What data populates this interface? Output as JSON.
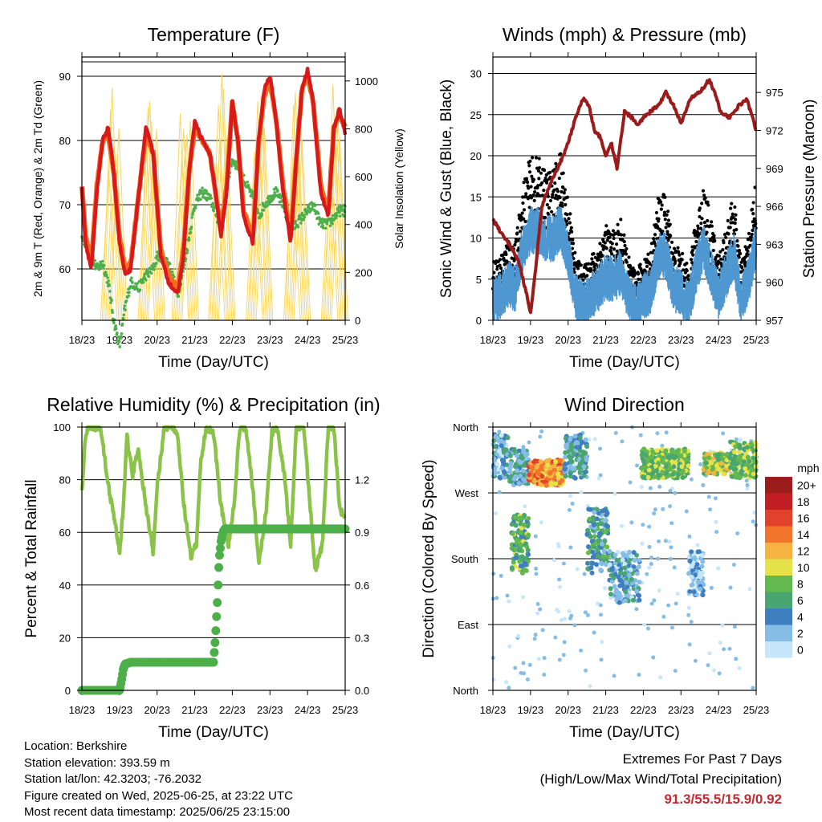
{
  "x_ticks": [
    "18/23",
    "19/23",
    "20/23",
    "21/23",
    "22/23",
    "23/23",
    "24/23",
    "25/23"
  ],
  "x_label": "Time (Day/UTC)",
  "colors": {
    "temp_2m": "#d7191c",
    "temp_9m": "#f46d1f",
    "dewpoint": "#4daf4a",
    "solar": "#f7d861",
    "gust": "#000000",
    "wind": "#4f97d1",
    "pressure": "#9b1b1b",
    "rh": "#8bc34a",
    "precip": "#4daf4a",
    "extremes": "#c8282d"
  },
  "chart_data": [
    {
      "id": "temperature",
      "type": "line",
      "title": "Temperature (F)",
      "xlabel": "Time (Day/UTC)",
      "ylabel": "2m & 9m T (Red, Orange) & 2m Td (Green)",
      "y2label": "Solar Insolation (Yellow)",
      "ylim": [
        52,
        93
      ],
      "y2lim": [
        0,
        1100
      ],
      "yticks": [
        60,
        70,
        80,
        90
      ],
      "y2ticks": [
        0,
        200,
        400,
        600,
        800,
        1000
      ],
      "x": [
        0,
        0.1,
        0.25,
        0.4,
        0.55,
        0.7,
        0.85,
        1.0,
        1.15,
        1.3,
        1.5,
        1.7,
        1.9,
        2.0,
        2.1,
        2.3,
        2.55,
        2.7,
        2.85,
        3.0,
        3.2,
        3.4,
        3.55,
        3.7,
        3.85,
        4.0,
        4.15,
        4.3,
        4.55,
        4.7,
        4.85,
        5.0,
        5.15,
        5.35,
        5.55,
        5.7,
        5.85,
        6.0,
        6.15,
        6.35,
        6.55,
        6.7,
        6.85,
        7.0
      ],
      "series": [
        {
          "name": "2m T",
          "values": [
            73,
            64,
            60,
            72,
            80,
            82,
            75,
            64,
            59,
            60,
            71,
            82,
            78,
            70,
            62,
            58,
            56,
            62,
            75,
            83,
            80,
            78,
            72,
            65,
            72,
            86,
            80,
            68,
            64,
            80,
            88,
            90,
            84,
            72,
            64,
            77,
            88,
            91,
            86,
            72,
            68,
            82,
            85,
            81
          ]
        },
        {
          "name": "9m T",
          "values": [
            73,
            65,
            61,
            73,
            80,
            81,
            75,
            65,
            60,
            61,
            71,
            81,
            78,
            70,
            63,
            59,
            57,
            63,
            75,
            82,
            80,
            78,
            72,
            66,
            73,
            86,
            80,
            69,
            65,
            80,
            87,
            89,
            84,
            73,
            65,
            77,
            88,
            90,
            86,
            73,
            69,
            82,
            84,
            82
          ]
        },
        {
          "name": "2m Td",
          "values": [
            65,
            64,
            62,
            60,
            61,
            58,
            52,
            48,
            54,
            58,
            57,
            59,
            60,
            62,
            62,
            61,
            56,
            60,
            65,
            70,
            72,
            71,
            69,
            66,
            73,
            77,
            76,
            74,
            71,
            68,
            70,
            71,
            72,
            70,
            66,
            67,
            68,
            69,
            70,
            67,
            67,
            68,
            69,
            69
          ]
        }
      ],
      "solar": {
        "peaks": [
          0.85,
          1.85,
          2.75,
          3.72,
          4.72,
          5.72,
          6.72
        ],
        "peak_values": [
          1050,
          1040,
          1060,
          1050,
          1000,
          1050,
          1050
        ]
      }
    },
    {
      "id": "winds",
      "type": "scatter",
      "title": "Winds (mph) & Pressure (mb)",
      "xlabel": "Time (Day/UTC)",
      "ylabel": "Sonic Wind & Gust (Blue, Black)",
      "y2label": "Station Pressure (Maroon)",
      "ylim": [
        0,
        32
      ],
      "y2lim": [
        957,
        977.8
      ],
      "yticks": [
        0,
        5,
        10,
        15,
        20,
        25,
        30
      ],
      "y2ticks": [
        957,
        960,
        963,
        966,
        969,
        972,
        975
      ],
      "pressure_x": [
        0,
        0.2,
        0.45,
        0.7,
        0.9,
        1.0,
        1.1,
        1.3,
        1.55,
        1.8,
        2.0,
        2.2,
        2.4,
        2.55,
        2.7,
        2.85,
        3.0,
        3.15,
        3.3,
        3.5,
        3.7,
        3.85,
        4.0,
        4.2,
        4.4,
        4.6,
        4.8,
        5.0,
        5.25,
        5.5,
        5.75,
        5.9,
        6.05,
        6.3,
        6.55,
        6.75,
        6.9,
        7.0
      ],
      "pressure": [
        965,
        964,
        963,
        961.5,
        959,
        957.5,
        960,
        966,
        968,
        969.5,
        971,
        973,
        974.5,
        974,
        972,
        971.5,
        970,
        971,
        969,
        973.5,
        973,
        972.5,
        973,
        973.5,
        974,
        975,
        974,
        972.5,
        974.5,
        975,
        976,
        975,
        973.5,
        973,
        974,
        974.5,
        973,
        972
      ],
      "wind_mean_x": [
        0,
        0.2,
        0.4,
        0.6,
        0.8,
        1.0,
        1.2,
        1.4,
        1.6,
        1.8,
        2.0,
        2.2,
        2.4,
        2.6,
        2.8,
        3.0,
        3.2,
        3.4,
        3.6,
        3.8,
        4.0,
        4.2,
        4.4,
        4.6,
        4.8,
        5.0,
        5.2,
        5.4,
        5.6,
        5.8,
        6.0,
        6.2,
        6.4,
        6.6,
        6.8,
        7.0
      ],
      "wind_mean": [
        2.5,
        3,
        4.5,
        4,
        9,
        11,
        11,
        10,
        10,
        11.5,
        8,
        3,
        2,
        3,
        4,
        5.5,
        5,
        6,
        3,
        1.5,
        3,
        3.5,
        8,
        8,
        4,
        3.5,
        2,
        6,
        9,
        6,
        3,
        5.5,
        8,
        2.5,
        5,
        9.5
      ],
      "gust_extra": 6
    },
    {
      "id": "humidity",
      "type": "line",
      "title": "Relative Humidity (%) & Precipitation (in)",
      "xlabel": "Time (Day/UTC)",
      "ylabel": "Percent & Total Rainfall",
      "ylim": [
        0,
        100
      ],
      "y2lim": [
        0,
        1.5
      ],
      "yticks": [
        0,
        20,
        40,
        60,
        80,
        100
      ],
      "y2ticks": [
        "0.0",
        "0.3",
        "0.6",
        "0.9",
        "1.2"
      ],
      "rh_x": [
        0,
        0.1,
        0.2,
        0.5,
        0.7,
        0.9,
        1.0,
        1.1,
        1.2,
        1.35,
        1.5,
        1.7,
        1.9,
        2.0,
        2.2,
        2.4,
        2.55,
        2.7,
        2.9,
        3.05,
        3.15,
        3.3,
        3.5,
        3.7,
        3.9,
        4.05,
        4.2,
        4.35,
        4.55,
        4.7,
        4.9,
        5.05,
        5.2,
        5.4,
        5.55,
        5.7,
        5.9,
        6.05,
        6.2,
        6.4,
        6.55,
        6.7,
        6.85,
        7.0
      ],
      "rh": [
        76,
        98,
        100,
        100,
        78,
        62,
        52,
        70,
        96,
        82,
        92,
        70,
        52,
        78,
        100,
        100,
        96,
        72,
        50,
        56,
        85,
        100,
        98,
        70,
        55,
        72,
        100,
        100,
        76,
        48,
        68,
        98,
        100,
        80,
        55,
        100,
        100,
        74,
        45,
        56,
        100,
        100,
        70,
        64
      ],
      "precip_x": [
        0,
        1.0,
        1.05,
        1.1,
        1.15,
        1.3,
        2.0,
        3.0,
        3.5,
        3.55,
        3.6,
        3.62,
        3.65,
        3.7,
        3.75,
        3.8,
        4.5,
        5.5,
        6.5,
        7.0
      ],
      "precip": [
        0.0,
        0.0,
        0.05,
        0.12,
        0.15,
        0.16,
        0.16,
        0.16,
        0.16,
        0.3,
        0.5,
        0.6,
        0.75,
        0.85,
        0.9,
        0.92,
        0.92,
        0.92,
        0.92,
        0.92
      ]
    },
    {
      "id": "direction",
      "type": "scatter",
      "title": "Wind Direction",
      "xlabel": "Time (Day/UTC)",
      "ylabel": "Direction (Colored By Speed)",
      "ytick_labels": [
        "North",
        "East",
        "South",
        "West",
        "North"
      ],
      "ylim": [
        0,
        360
      ],
      "legend_title": "mph",
      "legend_labels": [
        "0",
        "2",
        "4",
        "6",
        "8",
        "10",
        "12",
        "14",
        "16",
        "18",
        "20+"
      ],
      "legend_colors": [
        "#c6e6fb",
        "#85bde6",
        "#3f7fc0",
        "#4aa670",
        "#63b94e",
        "#e6e24a",
        "#f5b342",
        "#f2752b",
        "#e2422c",
        "#c21e24",
        "#9c1b1b"
      ],
      "clusters": [
        {
          "x0": 0.0,
          "x1": 0.45,
          "dir0": 290,
          "dir1": 350,
          "spd": 3
        },
        {
          "x0": 0.45,
          "x1": 0.95,
          "dir0": 280,
          "dir1": 330,
          "spd": 4
        },
        {
          "x0": 0.5,
          "x1": 0.95,
          "dir0": 160,
          "dir1": 240,
          "spd": 7
        },
        {
          "x0": 0.95,
          "x1": 1.9,
          "dir0": 280,
          "dir1": 315,
          "spd": 13
        },
        {
          "x0": 1.9,
          "x1": 2.5,
          "dir0": 290,
          "dir1": 350,
          "spd": 4
        },
        {
          "x0": 2.5,
          "x1": 3.1,
          "dir0": 160,
          "dir1": 250,
          "spd": 5
        },
        {
          "x0": 3.1,
          "x1": 3.9,
          "dir0": 120,
          "dir1": 190,
          "spd": 3
        },
        {
          "x0": 3.95,
          "x1": 5.2,
          "dir0": 290,
          "dir1": 330,
          "spd": 8
        },
        {
          "x0": 5.2,
          "x1": 5.6,
          "dir0": 130,
          "dir1": 190,
          "spd": 2
        },
        {
          "x0": 5.6,
          "x1": 6.3,
          "dir0": 295,
          "dir1": 325,
          "spd": 9
        },
        {
          "x0": 6.3,
          "x1": 7.0,
          "dir0": 290,
          "dir1": 340,
          "spd": 8
        }
      ]
    }
  ],
  "footer": {
    "location": "Location: Berkshire",
    "elevation": "Station elevation: 393.59 m",
    "latlon": "Station lat/lon: 42.3203; -76.2032",
    "created": "Figure created on Wed, 2025-06-25, at 23:22 UTC",
    "timestamp": "Most recent data timestamp: 2025/06/25 23:15:00",
    "extremes_title": "Extremes For Past 7 Days",
    "extremes_subtitle": "(High/Low/Max Wind/Total Precipitation)",
    "extremes_values": "91.3/55.5/15.9/0.92"
  }
}
